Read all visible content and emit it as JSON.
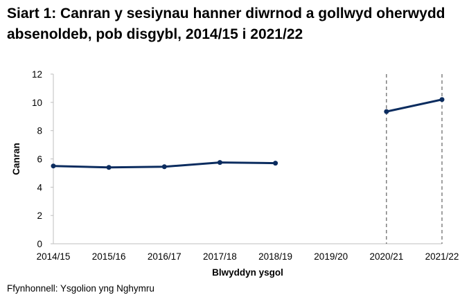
{
  "chart_title": "Siart 1: Canran y sesiynau hanner diwrnod a gollwyd oherwydd absenoldeb, pob disgybl, 2014/15 i 2021/22",
  "source_note": "Ffynhonnell: Ysgolion yng Nghymru",
  "chart_data": {
    "type": "line",
    "title": "Siart 1: Canran y sesiynau hanner diwrnod a gollwyd oherwydd absenoldeb, pob disgybl, 2014/15 i 2021/22",
    "xlabel": "Blwyddyn ysgol",
    "ylabel": "Canran",
    "ylim": [
      0,
      12
    ],
    "yticks": [
      0,
      2,
      4,
      6,
      8,
      10,
      12
    ],
    "grid": false,
    "categories": [
      "2014/15",
      "2015/16",
      "2016/17",
      "2017/18",
      "2018/19",
      "2019/20",
      "2020/21",
      "2021/22"
    ],
    "series": [
      {
        "values": [
          5.5,
          5.4,
          5.45,
          5.75,
          5.7,
          null,
          9.35,
          10.2
        ]
      }
    ],
    "markers": [
      "2020/21",
      "2021/22"
    ],
    "colors": {
      "line": "#0b2c5f",
      "axis": "#bfbfbf",
      "marker_line": "#404040"
    }
  }
}
